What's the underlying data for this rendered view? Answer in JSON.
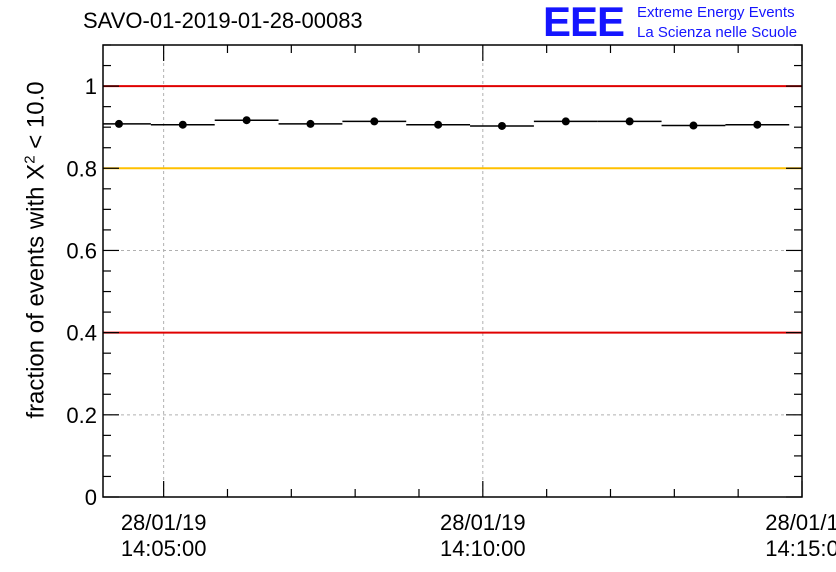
{
  "title": "SAVO-01-2019-01-28-00083",
  "logo": {
    "mark": "EEE",
    "line1": "Extreme Energy Events",
    "line2": "La Scienza nelle Scuole"
  },
  "colors": {
    "red_line": "#e00000",
    "yellow_line": "#ffc000",
    "logo_blue": "#1515ff",
    "data": "#000000"
  },
  "chart_data": {
    "type": "scatter",
    "title": "SAVO-01-2019-01-28-00083",
    "ylabel": {
      "prefix": "fraction of events with ",
      "symbol": "X",
      "exponent": "2",
      "suffix": " < 10.0"
    },
    "xlabel": "",
    "ylim": [
      0,
      1.1
    ],
    "xlim_minutes": [
      4.05,
      15.0
    ],
    "yticks": [
      "0",
      "0.2",
      "0.4",
      "0.6",
      "0.8",
      "1"
    ],
    "xticks": [
      {
        "date": "28/01/19",
        "time": "14:05:00",
        "t": 5
      },
      {
        "date": "28/01/19",
        "time": "14:10:00",
        "t": 10
      },
      {
        "date": "28/01/1",
        "time": "14:15:0",
        "t": 15
      }
    ],
    "reference_lines": [
      {
        "y": 1.0,
        "color": "#e00000"
      },
      {
        "y": 0.8,
        "color": "#ffc000"
      },
      {
        "y": 0.4,
        "color": "#e00000"
      }
    ],
    "points": [
      {
        "t": 4.3,
        "y": 0.908,
        "half_width": 0.5
      },
      {
        "t": 5.3,
        "y": 0.906,
        "half_width": 0.5
      },
      {
        "t": 6.3,
        "y": 0.917,
        "half_width": 0.5
      },
      {
        "t": 7.3,
        "y": 0.908,
        "half_width": 0.5
      },
      {
        "t": 8.3,
        "y": 0.914,
        "half_width": 0.5
      },
      {
        "t": 9.3,
        "y": 0.906,
        "half_width": 0.5
      },
      {
        "t": 10.3,
        "y": 0.903,
        "half_width": 0.5
      },
      {
        "t": 11.3,
        "y": 0.914,
        "half_width": 0.5
      },
      {
        "t": 12.3,
        "y": 0.914,
        "half_width": 0.5
      },
      {
        "t": 13.3,
        "y": 0.904,
        "half_width": 0.5
      },
      {
        "t": 14.3,
        "y": 0.906,
        "half_width": 0.5
      }
    ]
  }
}
